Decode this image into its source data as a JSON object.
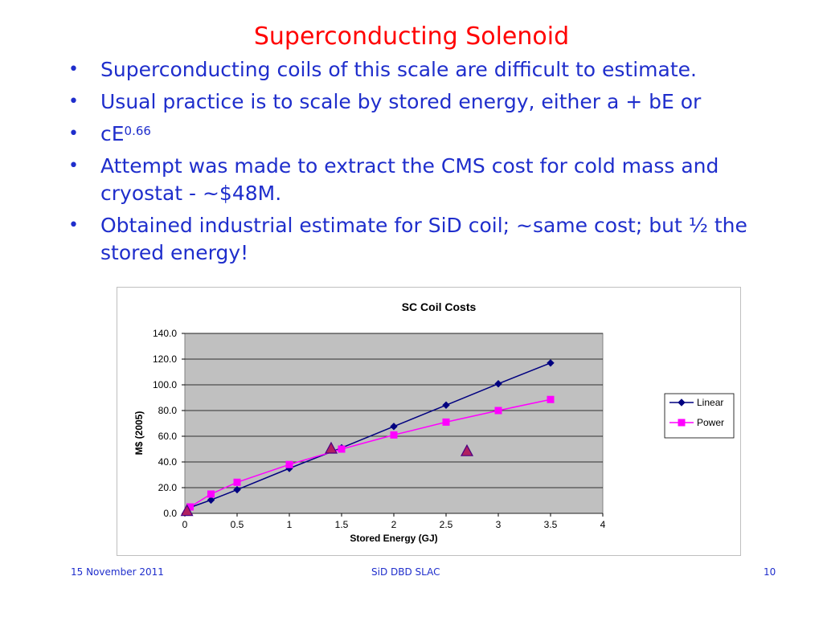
{
  "slide": {
    "title": "Superconducting Solenoid",
    "bullets": [
      {
        "text": "Superconducting coils of this scale are difficult to estimate."
      },
      {
        "text": "Usual practice is to scale by stored energy, either a + bE or"
      },
      {
        "text": "cE",
        "sup": "0.66"
      },
      {
        "text": "Attempt was made to extract the CMS cost for cold mass and cryostat - ~$48M."
      },
      {
        "text": "Obtained industrial estimate for SiD coil; ~same cost; but ½ the stored energy!"
      }
    ],
    "bullet_marker": "•"
  },
  "footer": {
    "date": "15 November 2011",
    "center": "SiD DBD SLAC",
    "page": "10"
  },
  "colors": {
    "title": "#ff0000",
    "text": "#1f2ecc",
    "plot_bg": "#c0c0c0",
    "linear": "#000080",
    "power": "#ff00ff",
    "triangle_fill": "#b02060",
    "triangle_stroke": "#4b0082"
  },
  "chart_data": {
    "type": "line",
    "title": "SC Coil Costs",
    "xlabel": "Stored Energy (GJ)",
    "ylabel": "M$ (2005)",
    "xlim": [
      0,
      4
    ],
    "ylim": [
      0,
      140
    ],
    "x_ticks": [
      "0",
      "0.5",
      "1",
      "1.5",
      "2",
      "2.5",
      "3",
      "3.5",
      "4"
    ],
    "y_ticks": [
      "0.0",
      "20.0",
      "40.0",
      "60.0",
      "80.0",
      "100.0",
      "120.0",
      "140.0"
    ],
    "grid": "horizontal",
    "legend_position": "right",
    "series": [
      {
        "name": "Linear",
        "marker": "diamond",
        "x": [
          0.05,
          0.25,
          0.5,
          1.0,
          1.5,
          2.0,
          2.5,
          3.0,
          3.5
        ],
        "y": [
          4.6,
          10.4,
          18.4,
          35.0,
          51.0,
          67.6,
          84.2,
          100.8,
          117.0
        ]
      },
      {
        "name": "Power",
        "marker": "square",
        "x": [
          0.05,
          0.25,
          0.5,
          1.0,
          1.5,
          2.0,
          2.5,
          3.0,
          3.5
        ],
        "y": [
          5.0,
          15.0,
          24.2,
          38.0,
          50.0,
          61.0,
          71.0,
          80.0,
          88.6
        ]
      },
      {
        "marker": "triangle",
        "x": [
          0.02,
          1.4,
          2.7
        ],
        "y": [
          1.5,
          50.0,
          48.0
        ]
      }
    ]
  }
}
